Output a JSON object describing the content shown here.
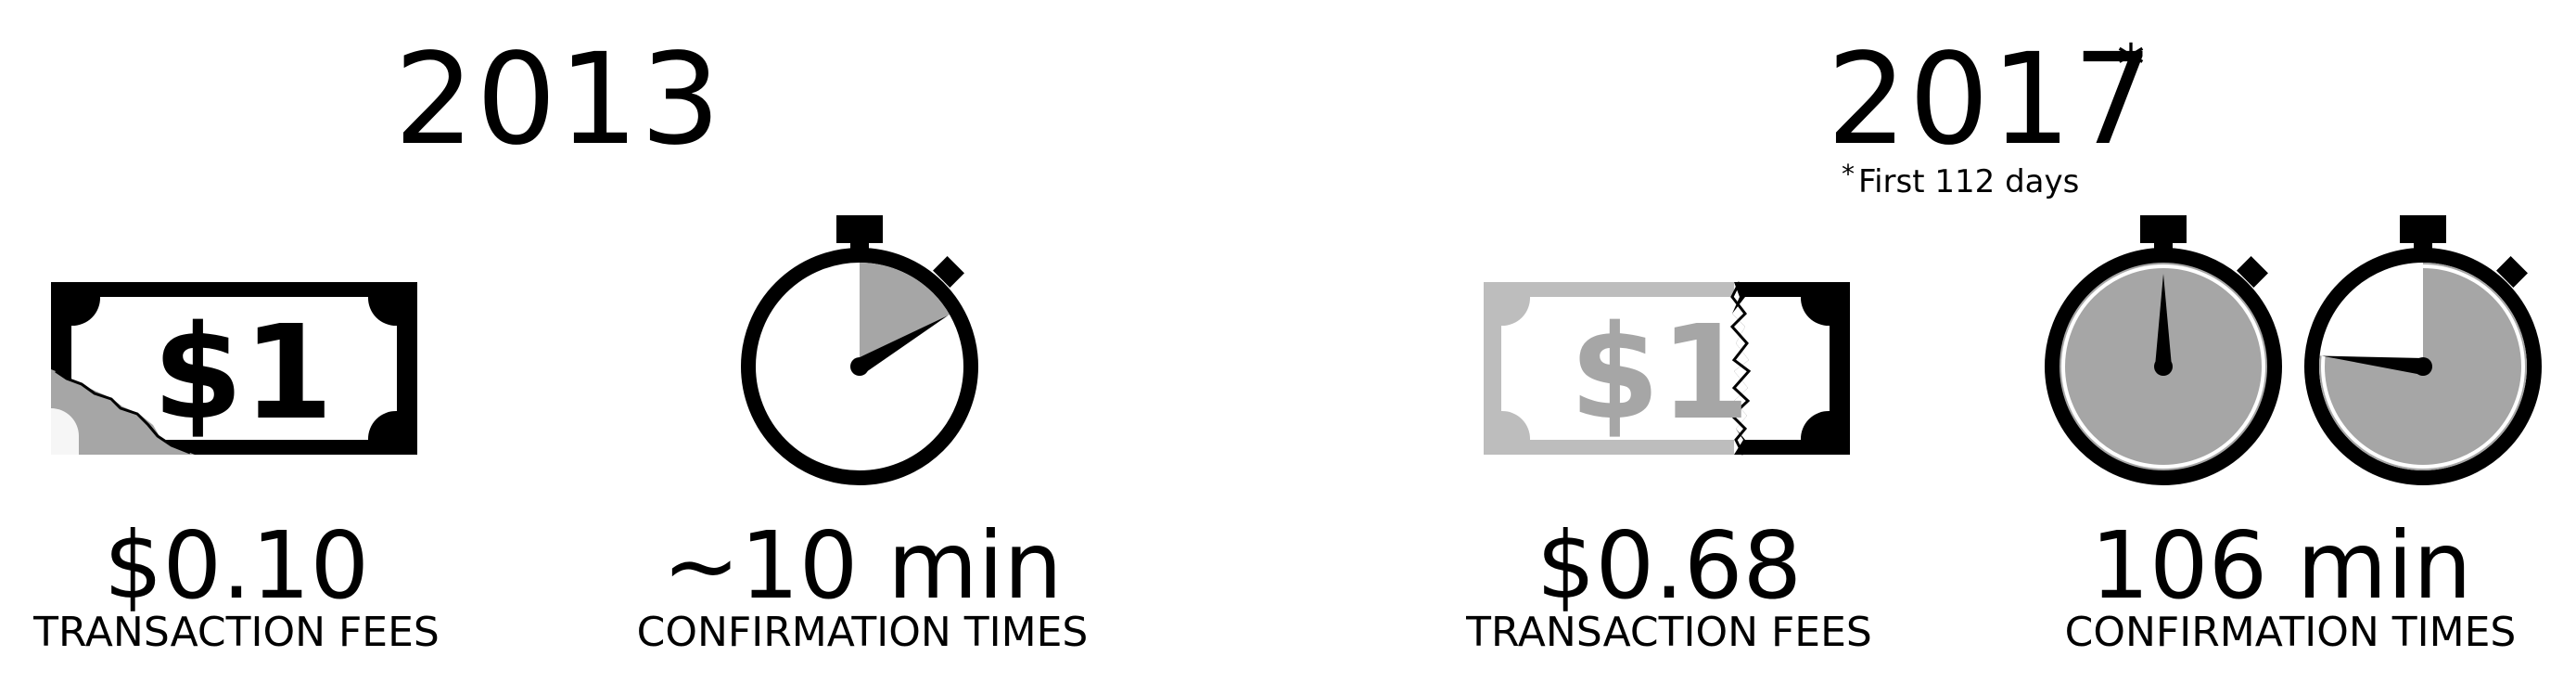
{
  "panels": [
    {
      "id": "2013",
      "year": "2013",
      "fee_value": "$0.10",
      "fee_label": "TRANSACTION FEES",
      "time_value": "~10 min",
      "time_label": "CONFIRMATION TIMES",
      "bill_text": "$1",
      "fee_fraction": 0.1,
      "time_minutes": 10
    },
    {
      "id": "2017",
      "year": "2017",
      "year_marker": "*",
      "footnote_marker": "*",
      "footnote": "First 112 days",
      "fee_value": "$0.68",
      "fee_label": "TRANSACTION FEES",
      "time_value": "106 min",
      "time_label": "CONFIRMATION TIMES",
      "bill_text": "$1",
      "fee_fraction": 0.68,
      "time_minutes": 106
    }
  ],
  "colors": {
    "ink": "#000000",
    "gray": "#a6a6a6",
    "light_gray": "#bdbdbd",
    "background": "#ffffff"
  },
  "icons": [
    "dollar-bill-icon",
    "stopwatch-icon"
  ]
}
